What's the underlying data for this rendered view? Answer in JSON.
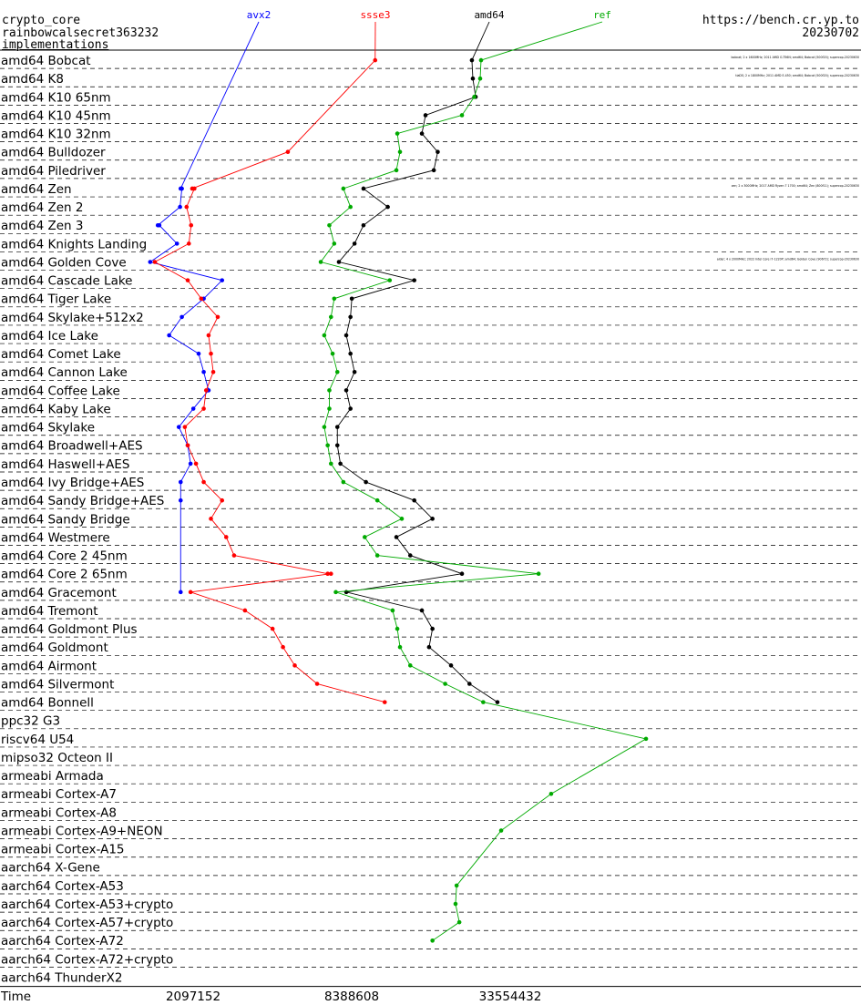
{
  "header": {
    "primitive": "crypto_core",
    "implementation": "rainbowcalsecret363232",
    "link": "implementations",
    "site": "https://bench.cr.yp.to",
    "date": "20230702"
  },
  "colors": {
    "avx2": "#0000ff",
    "ssse3": "#ff0000",
    "amd64": "#000000",
    "ref": "#00aa00"
  },
  "chart_data": {
    "type": "line",
    "xlabel": "Time",
    "x_scale": "log2",
    "x_ticks": [
      2097152,
      8388608,
      33554432
    ],
    "x_tick_labels": [
      "2097152",
      "8388608",
      "33554432"
    ],
    "legend": [
      {
        "name": "avx2",
        "color": "#0000ff"
      },
      {
        "name": "ssse3",
        "color": "#ff0000"
      },
      {
        "name": "amd64",
        "color": "#000000"
      },
      {
        "name": "ref",
        "color": "#00aa00"
      }
    ],
    "categories": [
      "amd64 Bobcat",
      "amd64 K8",
      "amd64 K10 65nm",
      "amd64 K10 45nm",
      "amd64 K10 32nm",
      "amd64 Bulldozer",
      "amd64 Piledriver",
      "amd64 Zen",
      "amd64 Zen 2",
      "amd64 Zen 3",
      "amd64 Knights Landing",
      "amd64 Golden Cove",
      "amd64 Cascade Lake",
      "amd64 Tiger Lake",
      "amd64 Skylake+512x2",
      "amd64 Ice Lake",
      "amd64 Comet Lake",
      "amd64 Cannon Lake",
      "amd64 Coffee Lake",
      "amd64 Kaby Lake",
      "amd64 Skylake",
      "amd64 Broadwell+AES",
      "amd64 Haswell+AES",
      "amd64 Ivy Bridge+AES",
      "amd64 Sandy Bridge+AES",
      "amd64 Sandy Bridge",
      "amd64 Westmere",
      "amd64 Core 2 45nm",
      "amd64 Core 2 65nm",
      "amd64 Gracemont",
      "amd64 Tremont",
      "amd64 Goldmont Plus",
      "amd64 Goldmont",
      "amd64 Airmont",
      "amd64 Silvermont",
      "amd64 Bonnell",
      "ppc32 G3",
      "riscv64 U54",
      "mipso32 Octeon II",
      "armeabi Armada",
      "armeabi Cortex-A7",
      "armeabi Cortex-A8",
      "armeabi Cortex-A9+NEON",
      "armeabi Cortex-A15",
      "aarch64 X-Gene",
      "aarch64 Cortex-A53",
      "aarch64 Cortex-A53+crypto",
      "aarch64 Cortex-A57+crypto",
      "aarch64 Cortex-A72",
      "aarch64 Cortex-A72+crypto",
      "aarch64 ThunderX2"
    ],
    "series": [
      {
        "name": "avx2",
        "color": "#0000ff",
        "points": [
          [
            7,
            1880000
          ],
          [
            7,
            1900000
          ],
          [
            8,
            1870000
          ],
          [
            9,
            1540000
          ],
          [
            9,
            1560000
          ],
          [
            10,
            1820000
          ],
          [
            11,
            1440000
          ],
          [
            12,
            2700000
          ],
          [
            13,
            2300000
          ],
          [
            14,
            1900000
          ],
          [
            15,
            1700000
          ],
          [
            16,
            2200000
          ],
          [
            17,
            2300000
          ],
          [
            18,
            2400000
          ],
          [
            19,
            2100000
          ],
          [
            20,
            1850000
          ],
          [
            21,
            2000000
          ],
          [
            22,
            2050000
          ],
          [
            23,
            1880000
          ],
          [
            24,
            1880000
          ],
          [
            29,
            1880000
          ]
        ]
      },
      {
        "name": "ssse3",
        "color": "#ff0000",
        "points": [
          [
            0,
            10300000
          ],
          [
            5,
            4800000
          ],
          [
            7,
            2080000
          ],
          [
            7,
            2120000
          ],
          [
            8,
            1980000
          ],
          [
            9,
            2060000
          ],
          [
            10,
            2020000
          ],
          [
            11,
            1500000
          ],
          [
            12,
            2000000
          ],
          [
            13,
            2250000
          ],
          [
            14,
            2600000
          ],
          [
            15,
            2400000
          ],
          [
            16,
            2450000
          ],
          [
            17,
            2500000
          ],
          [
            18,
            2350000
          ],
          [
            19,
            2300000
          ],
          [
            20,
            1950000
          ],
          [
            21,
            2000000
          ],
          [
            22,
            2150000
          ],
          [
            23,
            2300000
          ],
          [
            24,
            2700000
          ],
          [
            25,
            2450000
          ],
          [
            26,
            2800000
          ],
          [
            27,
            3000000
          ],
          [
            28,
            6800000
          ],
          [
            28,
            7000000
          ],
          [
            29,
            2050000
          ],
          [
            30,
            3300000
          ],
          [
            31,
            4200000
          ],
          [
            32,
            4600000
          ],
          [
            33,
            5100000
          ],
          [
            34,
            6200000
          ],
          [
            35,
            11200000
          ]
        ]
      },
      {
        "name": "amd64",
        "color": "#000000",
        "points": [
          [
            0,
            24000000
          ],
          [
            1,
            24200000
          ],
          [
            2,
            24800000
          ],
          [
            3,
            16000000
          ],
          [
            4,
            15500000
          ],
          [
            5,
            17800000
          ],
          [
            6,
            17200000
          ],
          [
            7,
            9300000
          ],
          [
            8,
            11500000
          ],
          [
            9,
            9300000
          ],
          [
            10,
            8600000
          ],
          [
            11,
            7500000
          ],
          [
            12,
            14500000
          ],
          [
            13,
            8400000
          ],
          [
            14,
            8300000
          ],
          [
            15,
            8000000
          ],
          [
            16,
            8300000
          ],
          [
            17,
            8600000
          ],
          [
            18,
            8000000
          ],
          [
            19,
            8300000
          ],
          [
            20,
            7400000
          ],
          [
            21,
            7400000
          ],
          [
            22,
            7600000
          ],
          [
            23,
            9500000
          ],
          [
            24,
            14500000
          ],
          [
            25,
            17000000
          ],
          [
            26,
            12400000
          ],
          [
            27,
            14000000
          ],
          [
            28,
            22000000
          ],
          [
            29,
            8000000
          ],
          [
            30,
            15500000
          ],
          [
            31,
            17000000
          ],
          [
            32,
            16500000
          ],
          [
            33,
            20000000
          ],
          [
            34,
            23500000
          ],
          [
            35,
            30000000
          ]
        ]
      },
      {
        "name": "ref",
        "color": "#00aa00",
        "points": [
          [
            0,
            26000000
          ],
          [
            1,
            25800000
          ],
          [
            2,
            24500000
          ],
          [
            3,
            22000000
          ],
          [
            4,
            12500000
          ],
          [
            5,
            12800000
          ],
          [
            6,
            12400000
          ],
          [
            7,
            7800000
          ],
          [
            8,
            8300000
          ],
          [
            9,
            6900000
          ],
          [
            10,
            7200000
          ],
          [
            11,
            6400000
          ],
          [
            12,
            11700000
          ],
          [
            13,
            7200000
          ],
          [
            14,
            7000000
          ],
          [
            15,
            6600000
          ],
          [
            16,
            7100000
          ],
          [
            17,
            7400000
          ],
          [
            18,
            6900000
          ],
          [
            19,
            6900000
          ],
          [
            20,
            6600000
          ],
          [
            21,
            6800000
          ],
          [
            22,
            7000000
          ],
          [
            23,
            7800000
          ],
          [
            24,
            10500000
          ],
          [
            25,
            13000000
          ],
          [
            26,
            9400000
          ],
          [
            27,
            10500000
          ],
          [
            28,
            43000000
          ],
          [
            29,
            7300000
          ],
          [
            30,
            12000000
          ],
          [
            31,
            12500000
          ],
          [
            32,
            12800000
          ],
          [
            33,
            14000000
          ],
          [
            34,
            19000000
          ],
          [
            35,
            26500000
          ],
          [
            37,
            110000000
          ],
          [
            40,
            48000000
          ],
          [
            42,
            31000000
          ],
          [
            45,
            21000000
          ],
          [
            46,
            20800000
          ],
          [
            47,
            21500000
          ],
          [
            48,
            17000000
          ]
        ]
      }
    ],
    "machine_notes": [
      "bobcat; 2 x 1600MHz; 2011 AMD G-T56N; amd64; Bobcat (500f20); supercop-20230630",
      "tiaDS; 2 x 1800MHz; 2011 AMD E-450; amd64; Bobcat (500f20); supercop-20230630",
      "",
      "",
      "",
      "",
      "",
      "zen; 2 x 3000MHz; 2017 AMD Ryzen 7 1700; amd64; Zen (800f11); supercop-20230630",
      "",
      "",
      "",
      "alder; 4 x 2000MHz; 2022 Intel Core i7-1220P; amd64; Golden Cove (90672); supercop-20230630",
      "",
      "",
      "",
      "",
      "",
      "",
      "",
      "",
      "",
      "",
      "",
      "",
      "",
      "",
      "",
      "",
      "",
      "",
      "",
      "",
      "",
      "",
      "",
      "",
      "",
      "",
      "",
      "",
      "",
      "",
      "",
      "",
      "",
      "",
      "",
      "",
      "",
      "",
      ""
    ]
  }
}
